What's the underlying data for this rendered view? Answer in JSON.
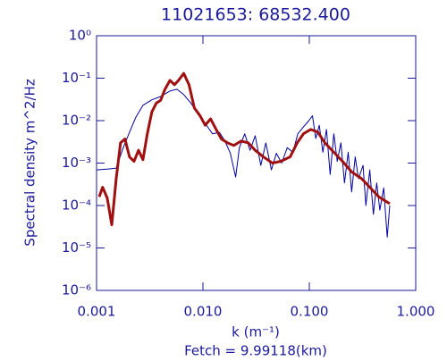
{
  "chart_data": {
    "type": "line",
    "title": "11021653: 68532.400",
    "x_label": "k (m⁻¹)",
    "y_label": "Spectral density m^2/Hz",
    "annotation": "Fetch = 9.99118(km)",
    "xlog": true,
    "ylog": true,
    "xlim": [
      0.001,
      1
    ],
    "ylim": [
      1e-06,
      1
    ],
    "xticks": [
      {
        "value": 0.001,
        "label": "0.001"
      },
      {
        "value": 0.01,
        "label": "0.010"
      },
      {
        "value": 0.1,
        "label": "0.100"
      },
      {
        "value": 1,
        "label": "1.000"
      }
    ],
    "yticks": [
      {
        "value": 1e-06,
        "label": "10⁻⁶"
      },
      {
        "value": 1e-05,
        "label": "10⁻⁵"
      },
      {
        "value": 0.0001,
        "label": "10⁻⁴"
      },
      {
        "value": 0.001,
        "label": "10⁻³"
      },
      {
        "value": 0.01,
        "label": "10⁻²"
      },
      {
        "value": 0.1,
        "label": "10⁻¹"
      },
      {
        "value": 1,
        "label": "10⁰"
      }
    ],
    "series": [
      {
        "color": "#0000a0",
        "width": 1,
        "x": [
          0.001,
          0.00126,
          0.00153,
          0.00178,
          0.00204,
          0.00234,
          0.00273,
          0.00331,
          0.004,
          0.0049,
          0.0057,
          0.0066,
          0.0077,
          0.009,
          0.0105,
          0.0123,
          0.0143,
          0.0161,
          0.0181,
          0.0203,
          0.022,
          0.0247,
          0.0277,
          0.031,
          0.035,
          0.039,
          0.044,
          0.049,
          0.055,
          0.062,
          0.07,
          0.078,
          0.088,
          0.099,
          0.107,
          0.115,
          0.124,
          0.134,
          0.145,
          0.157,
          0.17,
          0.183,
          0.198,
          0.214,
          0.232,
          0.25,
          0.27,
          0.29,
          0.32,
          0.34,
          0.37,
          0.4,
          0.43,
          0.46,
          0.5,
          0.54,
          0.57
        ],
        "values": [
          0.00069,
          0.00072,
          0.00076,
          0.0023,
          0.0053,
          0.012,
          0.023,
          0.031,
          0.037,
          0.05,
          0.055,
          0.041,
          0.026,
          0.014,
          0.0086,
          0.0049,
          0.0053,
          0.0033,
          0.0017,
          0.00047,
          0.0023,
          0.0049,
          0.002,
          0.0044,
          0.00088,
          0.003,
          0.00069,
          0.0017,
          0.001,
          0.0023,
          0.0018,
          0.0049,
          0.0071,
          0.01,
          0.013,
          0.0038,
          0.0078,
          0.0018,
          0.0062,
          0.00054,
          0.0049,
          0.0011,
          0.003,
          0.00034,
          0.0018,
          0.00021,
          0.0014,
          0.00043,
          0.00088,
          0.0001,
          0.00069,
          6.2e-05,
          0.00034,
          7.8e-05,
          0.00026,
          1.8e-05,
          0.0001
        ]
      },
      {
        "color": "#a01010",
        "width": 3,
        "x": [
          0.00106,
          0.00114,
          0.00126,
          0.00139,
          0.00153,
          0.00168,
          0.00185,
          0.00204,
          0.00225,
          0.00248,
          0.00273,
          0.003,
          0.00331,
          0.00365,
          0.004,
          0.0044,
          0.0049,
          0.0054,
          0.0059,
          0.0066,
          0.0074,
          0.0083,
          0.0094,
          0.0105,
          0.0118,
          0.0133,
          0.0149,
          0.017,
          0.0195,
          0.0228,
          0.0266,
          0.031,
          0.037,
          0.045,
          0.054,
          0.066,
          0.077,
          0.088,
          0.103,
          0.12,
          0.14,
          0.17,
          0.205,
          0.25,
          0.31,
          0.37,
          0.45,
          0.57
        ],
        "values": [
          0.00016,
          0.00027,
          0.00015,
          3.5e-05,
          0.00043,
          0.003,
          0.0037,
          0.0014,
          0.0011,
          0.002,
          0.0012,
          0.0049,
          0.016,
          0.026,
          0.03,
          0.055,
          0.089,
          0.07,
          0.089,
          0.13,
          0.07,
          0.02,
          0.013,
          0.0078,
          0.011,
          0.0062,
          0.0037,
          0.003,
          0.0026,
          0.0033,
          0.003,
          0.002,
          0.0014,
          0.001,
          0.0011,
          0.0014,
          0.003,
          0.0049,
          0.0062,
          0.0054,
          0.003,
          0.0018,
          0.0011,
          0.00062,
          0.00043,
          0.00027,
          0.00016,
          0.00011
        ]
      }
    ]
  }
}
